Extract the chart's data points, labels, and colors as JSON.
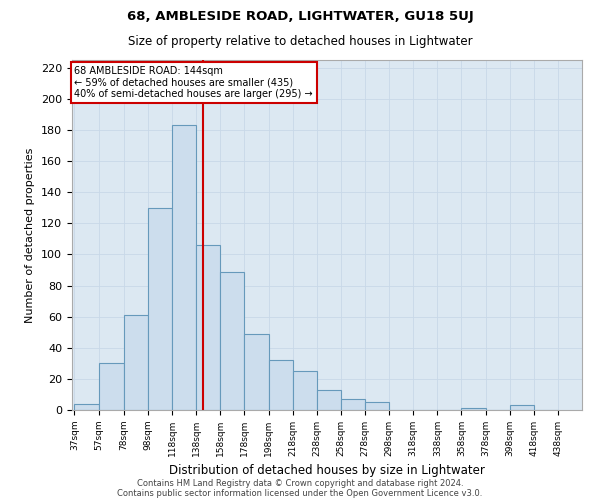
{
  "title": "68, AMBLESIDE ROAD, LIGHTWATER, GU18 5UJ",
  "subtitle": "Size of property relative to detached houses in Lightwater",
  "xlabel": "Distribution of detached houses by size in Lightwater",
  "ylabel": "Number of detached properties",
  "property_line": 144,
  "annotation_lines": [
    "68 AMBLESIDE ROAD: 144sqm",
    "← 59% of detached houses are smaller (435)",
    "40% of semi-detached houses are larger (295) →"
  ],
  "bin_labels": [
    "37sqm",
    "57sqm",
    "78sqm",
    "98sqm",
    "118sqm",
    "138sqm",
    "158sqm",
    "178sqm",
    "198sqm",
    "218sqm",
    "238sqm",
    "258sqm",
    "278sqm",
    "298sqm",
    "318sqm",
    "338sqm",
    "358sqm",
    "378sqm",
    "398sqm",
    "418sqm",
    "438sqm"
  ],
  "bins": [
    37,
    57,
    78,
    98,
    118,
    138,
    158,
    178,
    198,
    218,
    238,
    258,
    278,
    298,
    318,
    338,
    358,
    378,
    398,
    418,
    438
  ],
  "bar_heights": [
    4,
    30,
    61,
    130,
    183,
    106,
    89,
    49,
    32,
    25,
    13,
    7,
    5,
    0,
    0,
    0,
    1,
    0,
    3,
    0
  ],
  "bar_color": "#ccdded",
  "bar_edge_color": "#6699bb",
  "red_line_color": "#cc0000",
  "annotation_box_edge": "#cc0000",
  "grid_color": "#c8d8e8",
  "background_color": "#dce8f2",
  "ylim": [
    0,
    225
  ],
  "yticks": [
    0,
    20,
    40,
    60,
    80,
    100,
    120,
    140,
    160,
    180,
    200,
    220
  ],
  "footer_lines": [
    "Contains HM Land Registry data © Crown copyright and database right 2024.",
    "Contains public sector information licensed under the Open Government Licence v3.0."
  ]
}
